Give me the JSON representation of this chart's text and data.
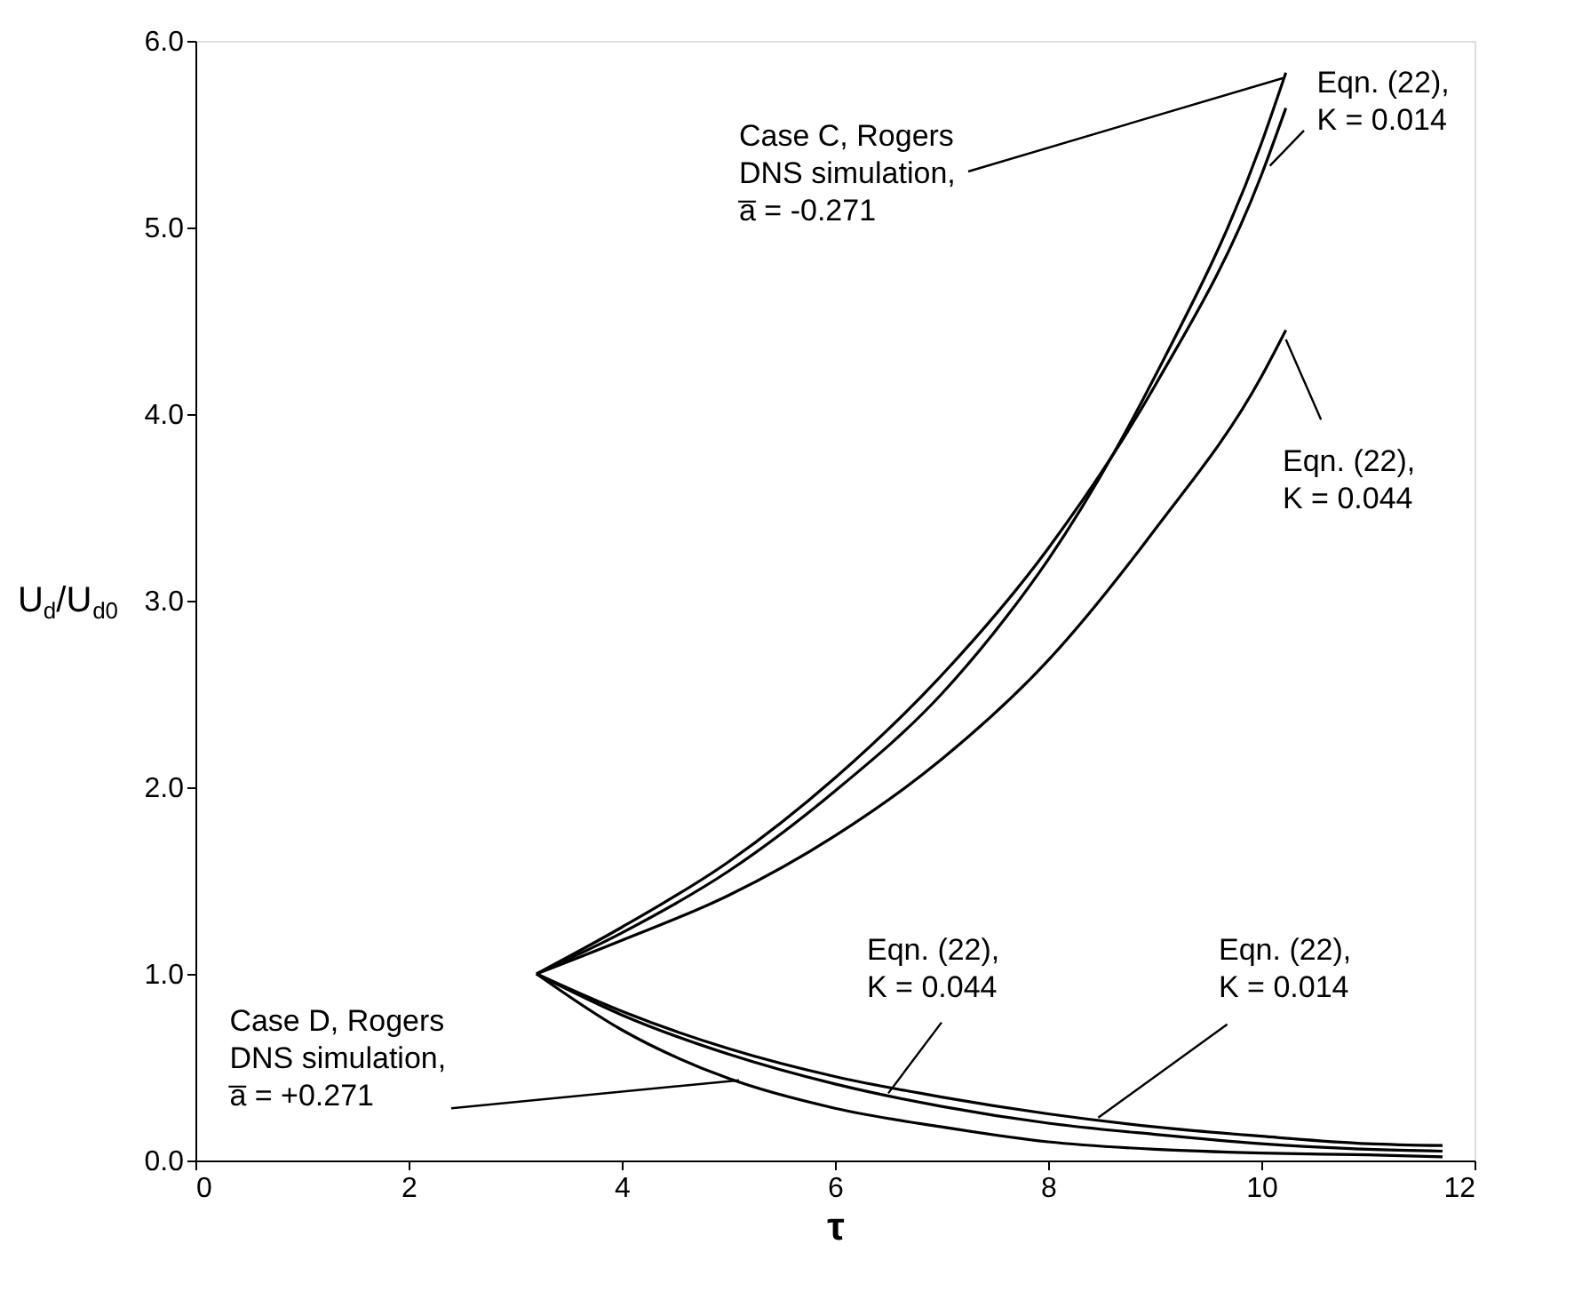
{
  "chart_data": {
    "type": "line",
    "xlabel": "τ",
    "ylabel": "U$_{d}$/U$_{d0}$",
    "xlim": [
      0,
      12
    ],
    "xticks": [
      0,
      2,
      4,
      6,
      8,
      10,
      12
    ],
    "ylim": [
      0,
      6
    ],
    "yticks": [
      {
        "value": 0,
        "label": "0.0"
      },
      {
        "value": 1,
        "label": "1.0"
      },
      {
        "value": 2,
        "label": "2.0"
      },
      {
        "value": 3,
        "label": "3.0"
      },
      {
        "value": 4,
        "label": "4.0"
      },
      {
        "value": 5,
        "label": "5.0"
      },
      {
        "value": 6,
        "label": "6.0"
      }
    ],
    "grid": false,
    "legend": false,
    "line_style": "solid",
    "marker": "none",
    "series": [
      {
        "color": "#000000",
        "x": [
          3.2,
          4,
          5,
          6,
          7,
          7.59,
          8,
          9,
          10,
          10.23
        ],
        "values": [
          1,
          1.22,
          1.55,
          1.98,
          2.5,
          2.9,
          3.22,
          4.2,
          5.45,
          5.83
        ]
      },
      {
        "color": "#000000",
        "x": [
          3.2,
          4,
          5,
          6,
          7,
          8,
          9,
          10,
          10.23
        ],
        "values": [
          1,
          1.25,
          1.6,
          2.05,
          2.6,
          3.28,
          4.15,
          5.28,
          5.64
        ]
      },
      {
        "color": "#000000",
        "x": [
          3.2,
          4,
          5,
          6,
          7,
          8,
          9,
          10,
          10.23
        ],
        "values": [
          1,
          1.18,
          1.42,
          1.74,
          2.15,
          2.68,
          3.38,
          4.2,
          4.45
        ]
      },
      {
        "color": "#000000",
        "x": [
          3.2,
          4,
          5,
          6,
          7,
          8,
          9,
          10,
          11,
          11.7
        ],
        "values": [
          1,
          0.7,
          0.44,
          0.28,
          0.18,
          0.1,
          0.06,
          0.04,
          0.03,
          0.02
        ]
      },
      {
        "color": "#000000",
        "x": [
          3.2,
          4,
          5,
          6,
          7,
          8,
          9,
          10,
          11,
          11.7
        ],
        "values": [
          1,
          0.78,
          0.57,
          0.41,
          0.29,
          0.2,
          0.14,
          0.09,
          0.06,
          0.05
        ]
      },
      {
        "color": "#000000",
        "x": [
          3.2,
          4,
          5,
          6,
          7,
          8,
          9,
          10,
          11,
          11.7
        ],
        "values": [
          1,
          0.8,
          0.6,
          0.45,
          0.34,
          0.25,
          0.18,
          0.13,
          0.09,
          0.08
        ]
      }
    ],
    "annotations": [
      {
        "text": "Case C, Rogers\nDNS simulation,\na̅ = -0.271",
        "x": 10.2,
        "y": 5.8
      },
      {
        "text": "Eqn. (22),\nK = 0.014",
        "x": 10.08,
        "y": 5.33
      },
      {
        "text": "Eqn. (22),\nK = 0.044",
        "x": 10.23,
        "y": 4.4
      },
      {
        "text": "Case D, Rogers\nDNS simulation,\na̅ = +0.271",
        "x": 5.1,
        "y": 0.43
      },
      {
        "text": "Eqn. (22),\nK = 0.044",
        "x": 6.5,
        "y": 0.36
      },
      {
        "text": "Eqn. (22),\nK = 0.014",
        "x": 8.47,
        "y": 0.23
      }
    ]
  }
}
